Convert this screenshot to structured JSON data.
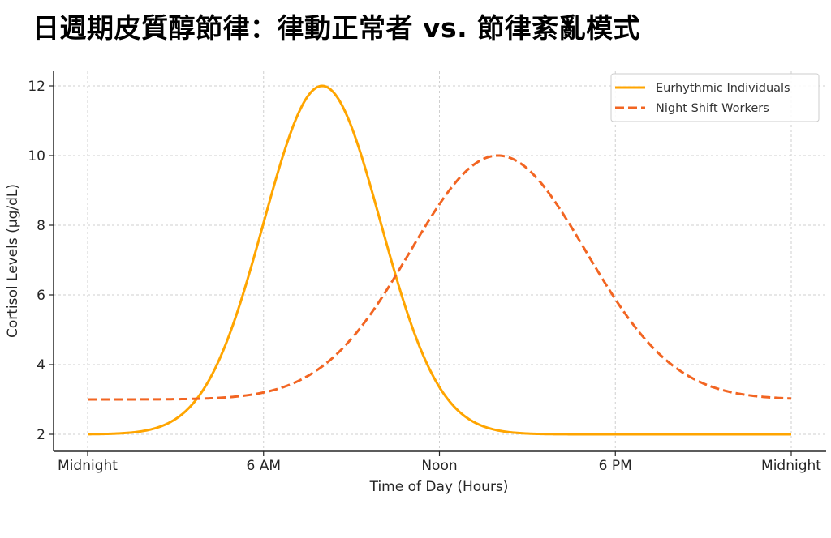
{
  "title": "日週期皮質醇節律：律動正常者 vs. 節律紊亂模式",
  "chart_data": {
    "type": "line",
    "title": "日週期皮質醇節律：律動正常者 vs. 節律紊亂模式",
    "xlabel": "Time of Day (Hours)",
    "ylabel": "Cortisol Levels (µg/dL)",
    "xlim": [
      0,
      24
    ],
    "ylim": [
      1.5,
      12.5
    ],
    "x_ticks": [
      0,
      6,
      12,
      18,
      24
    ],
    "x_tick_labels": [
      "Midnight",
      "6 AM",
      "Noon",
      "6 PM",
      "Midnight"
    ],
    "y_ticks": [
      2,
      4,
      6,
      8,
      10,
      12
    ],
    "y_tick_labels": [
      "2",
      "4",
      "6",
      "8",
      "10",
      "12"
    ],
    "grid": true,
    "legend_position": "upper right",
    "series": [
      {
        "name": "Eurhythmic Individuals",
        "color": "#FFA500",
        "style": "solid",
        "model": {
          "baseline": 2,
          "amplitude": 10,
          "peak_hour": 8,
          "sigma": 2
        },
        "x": [
          0,
          2,
          3,
          4,
          5,
          6,
          7,
          8,
          9,
          10,
          11,
          12,
          13,
          14,
          16,
          18,
          20,
          24
        ],
        "values": [
          2.0,
          2.11,
          2.44,
          3.35,
          5.25,
          8.07,
          10.82,
          12.0,
          10.82,
          8.07,
          5.25,
          3.35,
          2.44,
          2.11,
          2.0,
          2.0,
          2.0,
          2.0
        ]
      },
      {
        "name": "Night Shift Workers",
        "color": "#F26522",
        "style": "dashed",
        "model": {
          "baseline": 3,
          "amplitude": 7,
          "peak_hour": 14,
          "sigma": 3
        },
        "x": [
          0,
          4,
          6,
          8,
          10,
          11,
          12,
          13,
          14,
          15,
          16,
          17,
          18,
          20,
          22,
          24
        ],
        "values": [
          3.0,
          3.03,
          3.19,
          3.94,
          5.88,
          7.52,
          8.59,
          9.62,
          10.0,
          9.62,
          8.59,
          7.52,
          5.88,
          3.94,
          3.19,
          3.03
        ]
      }
    ]
  },
  "legend": {
    "items": [
      {
        "label": "Eurhythmic Individuals",
        "color": "#FFA500",
        "style": "solid"
      },
      {
        "label": "Night Shift Workers",
        "color": "#F26522",
        "style": "dashed"
      }
    ]
  },
  "axes": {
    "xlabel": "Time of Day (Hours)",
    "ylabel": "Cortisol Levels (µg/dL)",
    "x_tick_labels": [
      "Midnight",
      "6 AM",
      "Noon",
      "6 PM",
      "Midnight"
    ],
    "y_tick_labels": [
      "2",
      "4",
      "6",
      "8",
      "10",
      "12"
    ]
  }
}
